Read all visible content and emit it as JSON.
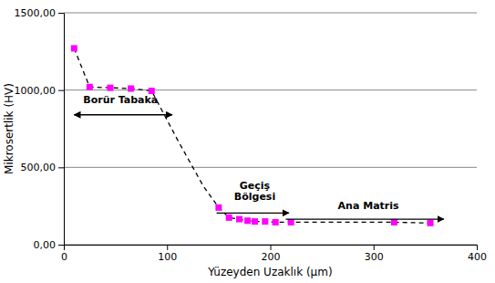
{
  "chart_data": {
    "type": "line",
    "xlabel": "Yüzeyden Uzaklık (μm)",
    "ylabel": "Mikrosertlik (HV)",
    "series": [
      {
        "type": "line",
        "line_style": "dashed",
        "color": "#000000",
        "x": [
          10,
          25,
          45,
          65,
          85,
          110,
          135,
          150,
          160,
          170,
          178,
          185,
          195,
          205,
          220,
          320,
          355
        ],
        "values": [
          1270,
          1020,
          1015,
          1010,
          995,
          680,
          380,
          240,
          175,
          165,
          155,
          150,
          150,
          145,
          145,
          145,
          140
        ]
      },
      {
        "type": "scatter",
        "marker": "square",
        "color": "#FF00FF",
        "x": [
          10,
          25,
          45,
          65,
          85,
          150,
          160,
          170,
          178,
          185,
          195,
          205,
          220,
          320,
          355
        ],
        "values": [
          1270,
          1020,
          1015,
          1010,
          995,
          240,
          175,
          165,
          155,
          150,
          150,
          145,
          145,
          145,
          140
        ]
      }
    ],
    "xlim": [
      0,
      400
    ],
    "ylim": [
      0,
      1500
    ],
    "xticks": [
      0,
      100,
      200,
      300,
      400
    ],
    "yticks": [
      {
        "value": 0,
        "label": "0,00"
      },
      {
        "value": 500,
        "label": "500,00"
      },
      {
        "value": 1000,
        "label": "1000,00"
      },
      {
        "value": 1500,
        "label": "1500,00"
      }
    ],
    "grid": "y",
    "annotations": [
      {
        "text": "Borür Tabaka",
        "x": 55,
        "y": 900,
        "arrow": "both",
        "arrow_x": [
          10,
          105
        ],
        "arrow_y": 840
      },
      {
        "text": "Geçiş\nBölgesi",
        "x": 185,
        "y": 270,
        "arrow": "end",
        "arrow_x": [
          148,
          218
        ],
        "arrow_y": 205
      },
      {
        "text": "Ana Matris",
        "x": 295,
        "y": 215,
        "arrow": "end",
        "arrow_x": [
          215,
          368
        ],
        "arrow_y": 165
      }
    ]
  }
}
